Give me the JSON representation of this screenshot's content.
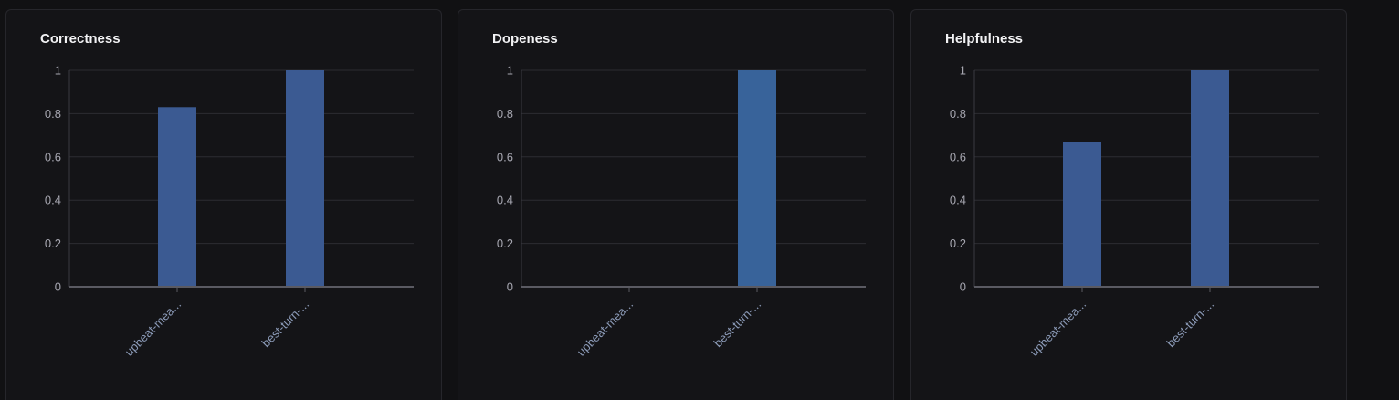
{
  "chart_data": [
    {
      "type": "bar",
      "title": "Correctness",
      "categories": [
        "upbeat-mea...",
        "best-turn-..."
      ],
      "values": [
        0.83,
        1.0
      ],
      "ylim": [
        0,
        1
      ],
      "yticks": [
        "0",
        "0.2",
        "0.4",
        "0.6",
        "0.8",
        "1"
      ],
      "color": "#3b5a92",
      "grid": true,
      "legend": "none"
    },
    {
      "type": "bar",
      "title": "Dopeness",
      "categories": [
        "upbeat-mea...",
        "best-turn-..."
      ],
      "values": [
        0,
        1.0
      ],
      "ylim": [
        0,
        1
      ],
      "yticks": [
        "0",
        "0.2",
        "0.4",
        "0.6",
        "0.8",
        "1"
      ],
      "color": "#38639a",
      "grid": true,
      "legend": "none"
    },
    {
      "type": "bar",
      "title": "Helpfulness",
      "categories": [
        "upbeat-mea...",
        "best-turn-..."
      ],
      "values": [
        0.67,
        1.0
      ],
      "ylim": [
        0,
        1
      ],
      "yticks": [
        "0",
        "0.2",
        "0.4",
        "0.6",
        "0.8",
        "1"
      ],
      "color": "#3b5a92",
      "grid": true,
      "legend": "none"
    }
  ]
}
